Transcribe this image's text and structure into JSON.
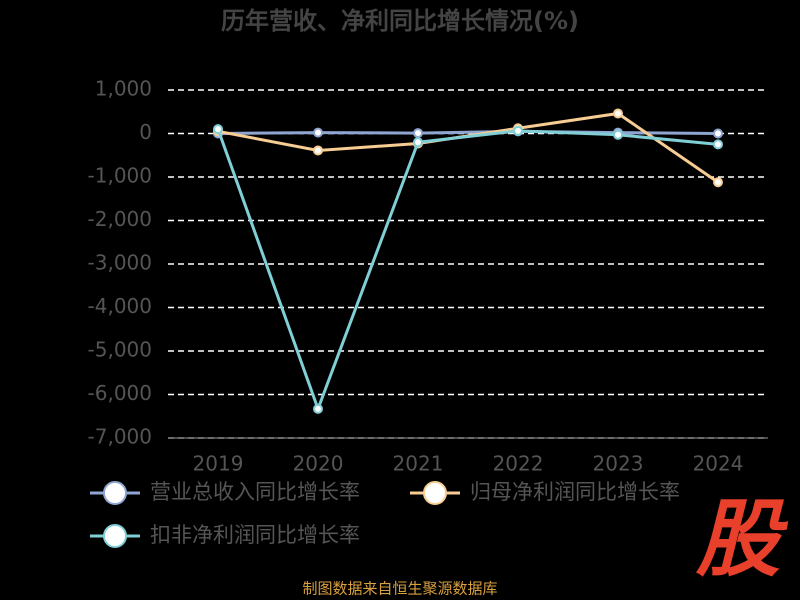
{
  "chart_data": {
    "type": "line",
    "title": "历年营收、净利同比增长情况(%)",
    "categories": [
      "2019",
      "2020",
      "2021",
      "2022",
      "2023",
      "2024"
    ],
    "series": [
      {
        "name": "营业总收入同比增长率",
        "color": "#8fa6d2",
        "values": [
          0,
          20,
          10,
          50,
          20,
          0
        ]
      },
      {
        "name": "归母净利润同比增长率",
        "color": "#f7cd93",
        "values": [
          50,
          -390,
          -230,
          120,
          460,
          -1120
        ]
      },
      {
        "name": "扣非净利润同比增长率",
        "color": "#80cfd7",
        "values": [
          100,
          -6330,
          -200,
          60,
          -30,
          -250
        ]
      }
    ],
    "ylim": [
      -7000,
      1000
    ],
    "yticks": [
      {
        "value": -7000,
        "label": "-7,000"
      },
      {
        "value": -6000,
        "label": "-6,000"
      },
      {
        "value": -5000,
        "label": "-5,000"
      },
      {
        "value": -4000,
        "label": "-4,000"
      },
      {
        "value": -3000,
        "label": "-3,000"
      },
      {
        "value": -2000,
        "label": "-2,000"
      },
      {
        "value": -1000,
        "label": "-1,000"
      },
      0,
      {
        "value": 1000,
        "label": "1,000"
      }
    ],
    "grid": true,
    "source": "制图数据来自恒生聚源数据库",
    "logo": "股"
  }
}
